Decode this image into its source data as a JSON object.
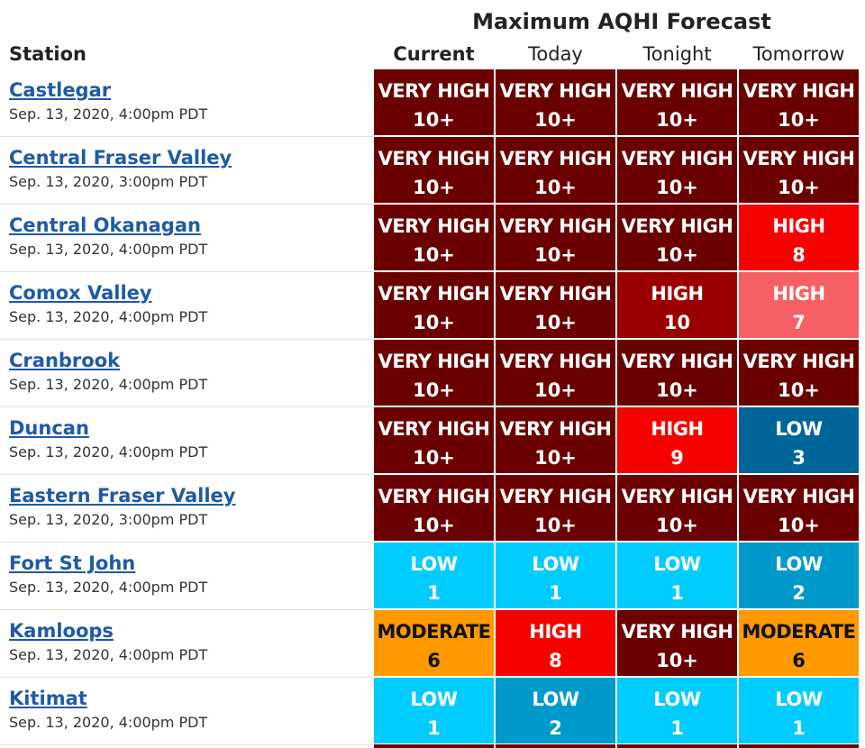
{
  "header": {
    "super_title": "Maximum AQHI Forecast",
    "station_label": "Station",
    "columns": [
      "Current",
      "Today",
      "Tonight",
      "Tomorrow"
    ]
  },
  "colors": {
    "very_high": "#6b0000",
    "high_10": "#9a0000",
    "high_8_9": "#f60000",
    "high_7": "#f66065",
    "moderate_6": "#ff9900",
    "low_1": "#00ccff",
    "low_2": "#0099cc",
    "low_3": "#006699",
    "link": "#1f5aa6"
  },
  "rows": [
    {
      "station": "Castlegar",
      "date": "Sep. 13, 2020, 4:00pm PDT",
      "cells": [
        {
          "level": "VERY HIGH",
          "value": "10+"
        },
        {
          "level": "VERY HIGH",
          "value": "10+"
        },
        {
          "level": "VERY HIGH",
          "value": "10+"
        },
        {
          "level": "VERY HIGH",
          "value": "10+"
        }
      ]
    },
    {
      "station": "Central Fraser Valley",
      "date": "Sep. 13, 2020, 3:00pm PDT",
      "cells": [
        {
          "level": "VERY HIGH",
          "value": "10+"
        },
        {
          "level": "VERY HIGH",
          "value": "10+"
        },
        {
          "level": "VERY HIGH",
          "value": "10+"
        },
        {
          "level": "VERY HIGH",
          "value": "10+"
        }
      ]
    },
    {
      "station": "Central Okanagan",
      "date": "Sep. 13, 2020, 4:00pm PDT",
      "cells": [
        {
          "level": "VERY HIGH",
          "value": "10+"
        },
        {
          "level": "VERY HIGH",
          "value": "10+"
        },
        {
          "level": "VERY HIGH",
          "value": "10+"
        },
        {
          "level": "HIGH",
          "value": "8"
        }
      ]
    },
    {
      "station": "Comox Valley",
      "date": "Sep. 13, 2020, 4:00pm PDT",
      "cells": [
        {
          "level": "VERY HIGH",
          "value": "10+"
        },
        {
          "level": "VERY HIGH",
          "value": "10+"
        },
        {
          "level": "HIGH",
          "value": "10"
        },
        {
          "level": "HIGH",
          "value": "7"
        }
      ]
    },
    {
      "station": "Cranbrook",
      "date": "Sep. 13, 2020, 4:00pm PDT",
      "cells": [
        {
          "level": "VERY HIGH",
          "value": "10+"
        },
        {
          "level": "VERY HIGH",
          "value": "10+"
        },
        {
          "level": "VERY HIGH",
          "value": "10+"
        },
        {
          "level": "VERY HIGH",
          "value": "10+"
        }
      ]
    },
    {
      "station": "Duncan",
      "date": "Sep. 13, 2020, 4:00pm PDT",
      "cells": [
        {
          "level": "VERY HIGH",
          "value": "10+"
        },
        {
          "level": "VERY HIGH",
          "value": "10+"
        },
        {
          "level": "HIGH",
          "value": "9"
        },
        {
          "level": "LOW",
          "value": "3"
        }
      ]
    },
    {
      "station": "Eastern Fraser Valley",
      "date": "Sep. 13, 2020, 3:00pm PDT",
      "cells": [
        {
          "level": "VERY HIGH",
          "value": "10+"
        },
        {
          "level": "VERY HIGH",
          "value": "10+"
        },
        {
          "level": "VERY HIGH",
          "value": "10+"
        },
        {
          "level": "VERY HIGH",
          "value": "10+"
        }
      ]
    },
    {
      "station": "Fort St John",
      "date": "Sep. 13, 2020, 4:00pm PDT",
      "cells": [
        {
          "level": "LOW",
          "value": "1"
        },
        {
          "level": "LOW",
          "value": "1"
        },
        {
          "level": "LOW",
          "value": "1"
        },
        {
          "level": "LOW",
          "value": "2"
        }
      ]
    },
    {
      "station": "Kamloops",
      "date": "Sep. 13, 2020, 4:00pm PDT",
      "cells": [
        {
          "level": "MODERATE",
          "value": "6"
        },
        {
          "level": "HIGH",
          "value": "8"
        },
        {
          "level": "VERY HIGH",
          "value": "10+"
        },
        {
          "level": "MODERATE",
          "value": "6"
        }
      ]
    },
    {
      "station": "Kitimat",
      "date": "Sep. 13, 2020, 4:00pm PDT",
      "cells": [
        {
          "level": "LOW",
          "value": "1"
        },
        {
          "level": "LOW",
          "value": "2"
        },
        {
          "level": "LOW",
          "value": "1"
        },
        {
          "level": "LOW",
          "value": "1"
        }
      ]
    }
  ]
}
